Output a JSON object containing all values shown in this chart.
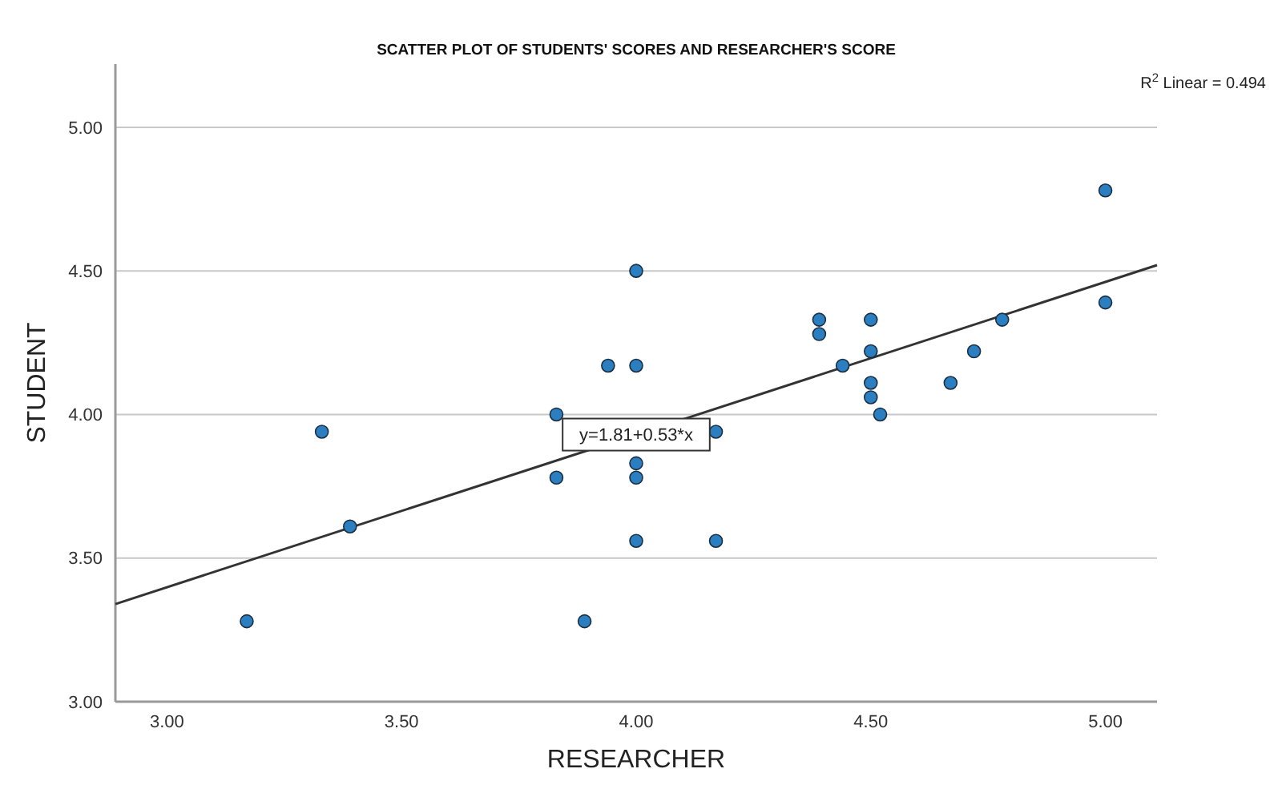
{
  "chart_data": {
    "type": "scatter",
    "title": "SCATTER PLOT OF STUDENTS' SCORES AND RESEARCHER'S SCORE",
    "xlabel": "RESEARCHER",
    "ylabel": "STUDENT",
    "xlim": [
      2.89,
      5.11
    ],
    "ylim": [
      3.0,
      5.22
    ],
    "xticks": [
      {
        "value": 3,
        "label": "3.00"
      },
      {
        "value": 3.5,
        "label": "3.50"
      },
      {
        "value": 4,
        "label": "4.00"
      },
      {
        "value": 4.5,
        "label": "4.50"
      },
      {
        "value": 5,
        "label": "5.00"
      }
    ],
    "yticks": [
      {
        "value": 3,
        "label": "3.00"
      },
      {
        "value": 3.5,
        "label": "3.50"
      },
      {
        "value": 4,
        "label": "4.00"
      },
      {
        "value": 4.5,
        "label": "4.50"
      },
      {
        "value": 5,
        "label": "5.00"
      }
    ],
    "grid": "y",
    "series": [
      {
        "marker": "circle",
        "color": "#2b7fc1",
        "x": [
          3.17,
          3.33,
          3.39,
          3.83,
          3.83,
          3.89,
          3.94,
          4.0,
          4.0,
          4.0,
          4.0,
          4.0,
          4.17,
          4.17,
          4.39,
          4.39,
          4.44,
          4.5,
          4.5,
          4.5,
          4.5,
          4.52,
          4.67,
          4.72,
          4.78,
          5.0,
          5.0
        ],
        "values": [
          3.28,
          3.94,
          3.61,
          4.0,
          3.78,
          3.28,
          4.17,
          4.5,
          4.17,
          3.83,
          3.78,
          3.56,
          3.94,
          3.56,
          4.33,
          4.28,
          4.17,
          4.33,
          4.22,
          4.11,
          4.06,
          4.0,
          4.11,
          4.22,
          4.33,
          4.78,
          4.39
        ]
      },
      {
        "type": "line",
        "color": "#333333",
        "x": [
          2.89,
          5.11
        ],
        "values": [
          3.34,
          4.52
        ]
      }
    ],
    "annotations": [
      {
        "text": "y=1.81+0.53*x",
        "x": 4.0,
        "y": 3.93
      },
      "R$^{2}$ Linear = 0.494"
    ]
  }
}
